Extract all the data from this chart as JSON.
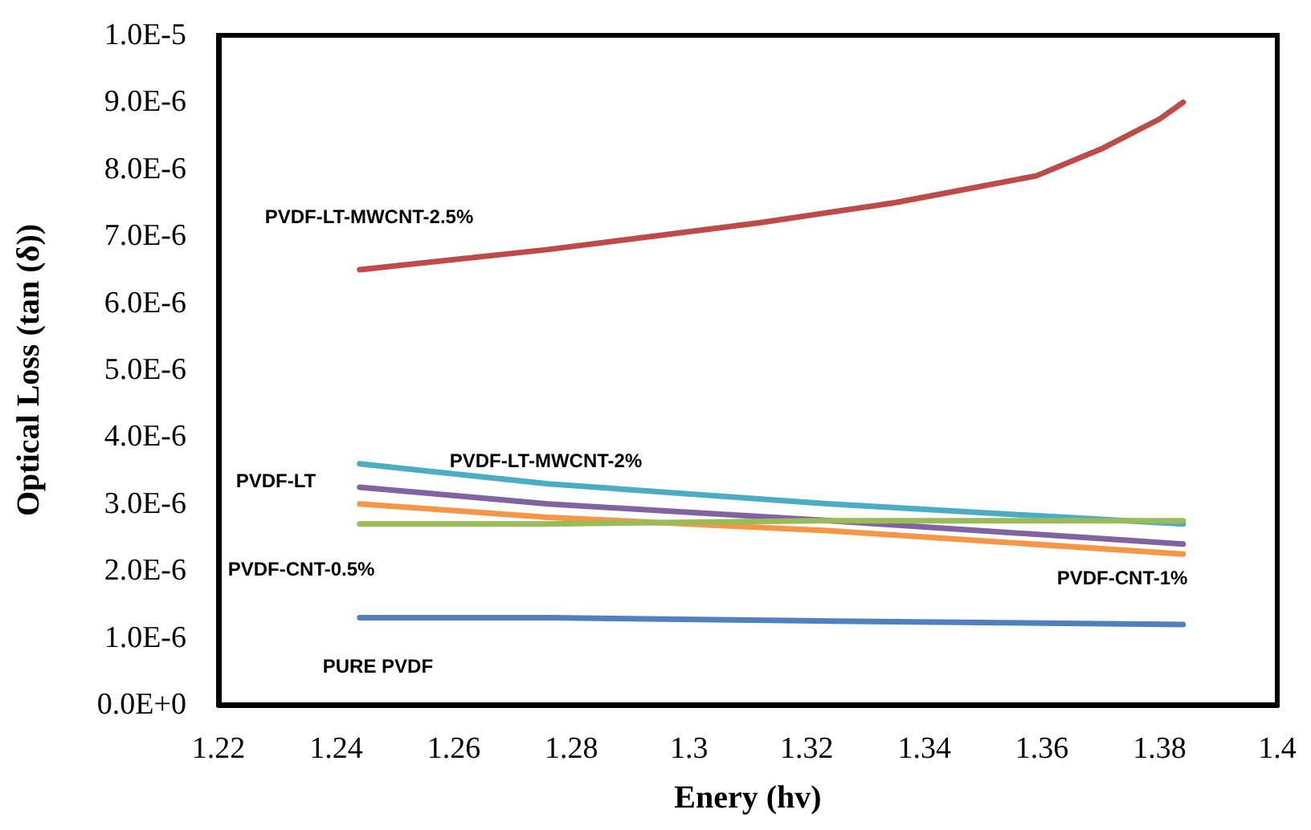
{
  "chart_data": {
    "type": "line",
    "xlabel": "Enery (hv)",
    "ylabel": "Optical Loss (tan (δ))",
    "x": [
      1.244,
      1.276,
      1.324,
      1.384
    ],
    "series": [
      {
        "name": "PURE PVDF",
        "color": "#4f81bd",
        "values": [
          1.3e-06,
          1.3e-06,
          1.25e-06,
          1.2e-06
        ]
      },
      {
        "name": "PVDF-LT-MWCNT-2%",
        "color": "#4bacc6",
        "values": [
          3.6e-06,
          3.3e-06,
          3e-06,
          2.7e-06
        ]
      },
      {
        "name": "PVDF-LT",
        "color": "#8064a2",
        "values": [
          3.25e-06,
          3e-06,
          2.75e-06,
          2.4e-06
        ]
      },
      {
        "name": "PVDF-CNT-1%",
        "color": "#f79646",
        "values": [
          3e-06,
          2.8e-06,
          2.6e-06,
          2.25e-06
        ]
      },
      {
        "name": "PVDF-CNT-0.5%",
        "color": "#9bbb59",
        "values": [
          2.7e-06,
          2.7e-06,
          2.75e-06,
          2.75e-06
        ]
      },
      {
        "name": "PVDF-LT-MWCNT-2.5%",
        "color": "#be4b48",
        "x": [
          1.244,
          1.276,
          1.312,
          1.335,
          1.359,
          1.37,
          1.38,
          1.384
        ],
        "values": [
          6.5e-06,
          6.8e-06,
          7.2e-06,
          7.5e-06,
          7.9e-06,
          8.3e-06,
          8.75e-06,
          9e-06
        ]
      }
    ],
    "xlim": [
      1.22,
      1.4
    ],
    "xticks": [
      1.22,
      1.24,
      1.26,
      1.28,
      1.3,
      1.32,
      1.34,
      1.36,
      1.38,
      1.4
    ],
    "ylim": [
      0,
      1e-05
    ],
    "yticks": [
      {
        "value": 0,
        "label": "0.0E+0"
      },
      {
        "value": 1e-06,
        "label": "1.0E-6"
      },
      {
        "value": 2e-06,
        "label": "2.0E-6"
      },
      {
        "value": 3e-06,
        "label": "3.0E-6"
      },
      {
        "value": 4e-06,
        "label": "4.0E-6"
      },
      {
        "value": 5e-06,
        "label": "5.0E-6"
      },
      {
        "value": 6e-06,
        "label": "6.0E-6"
      },
      {
        "value": 7e-06,
        "label": "7.0E-6"
      },
      {
        "value": 8e-06,
        "label": "8.0E-6"
      },
      {
        "value": 9e-06,
        "label": "9.0E-6"
      },
      {
        "value": 1e-05,
        "label": "1.0E-5"
      }
    ],
    "grid": false,
    "marker": "none",
    "line_style": "solid"
  }
}
